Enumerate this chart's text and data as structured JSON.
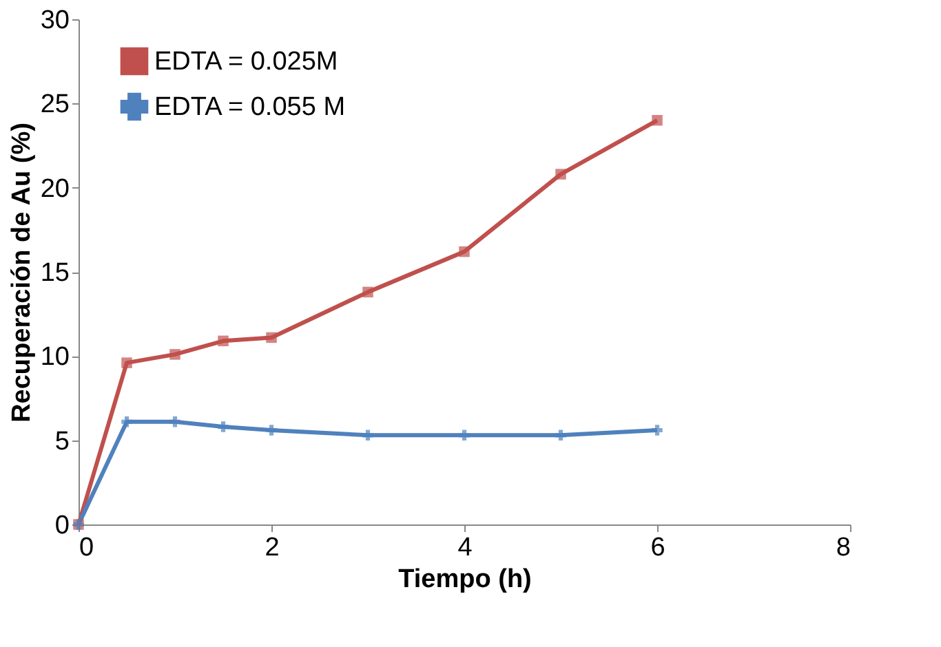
{
  "chart_data": {
    "type": "line",
    "xlabel": "Tiempo (h)",
    "ylabel": "Recuperación de Au (%)",
    "x": [
      0,
      0.5,
      1,
      1.5,
      2,
      3,
      4,
      5,
      6
    ],
    "series": [
      {
        "name": "EDTA = 0.025M",
        "color": "#c0504d",
        "marker": "square",
        "values": [
          0,
          9.6,
          10.1,
          10.9,
          11.1,
          13.8,
          16.2,
          20.8,
          24.0
        ]
      },
      {
        "name": "EDTA = 0.055 M",
        "color": "#4f81bd",
        "marker": "cross",
        "values": [
          0,
          6.1,
          6.1,
          5.8,
          5.6,
          5.3,
          5.3,
          5.3,
          5.6
        ]
      }
    ],
    "xlim": [
      0,
      8
    ],
    "xticks": [
      0,
      2,
      4,
      6,
      8
    ],
    "ylim": [
      0,
      30
    ],
    "yticks": [
      0,
      5,
      10,
      15,
      20,
      25,
      30
    ],
    "grid": false,
    "legend": "top left",
    "line_style": "solid"
  }
}
